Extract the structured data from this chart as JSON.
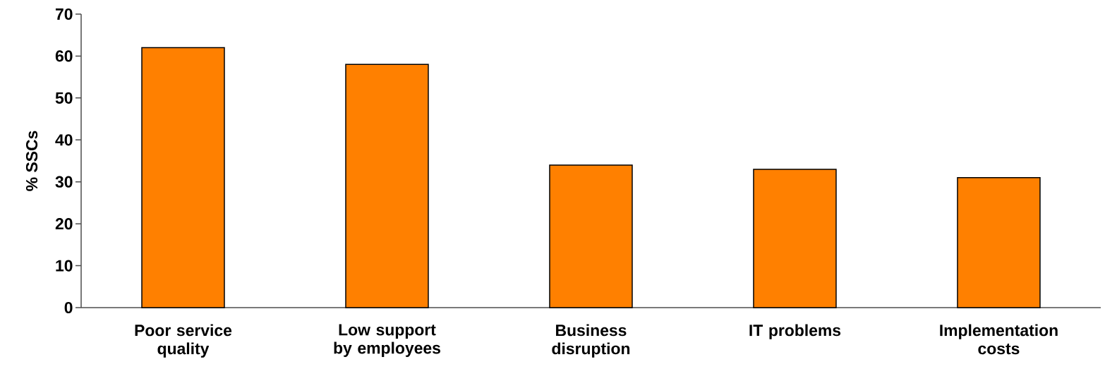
{
  "chart_data": {
    "type": "bar",
    "ylabel": "% SSCs",
    "categories": [
      "Poor service quality",
      "Low support by employees",
      "Business disruption",
      "IT problems",
      "Implementation costs"
    ],
    "values": [
      62,
      58,
      34,
      33,
      31
    ],
    "color": "#ff8000",
    "ylim": [
      0,
      70
    ],
    "yticks": [
      0,
      10,
      20,
      30,
      40,
      50,
      60,
      70
    ],
    "grid": false
  }
}
